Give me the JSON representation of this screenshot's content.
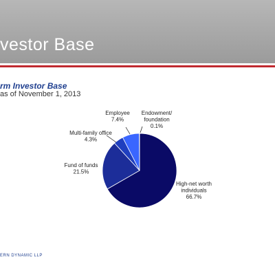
{
  "header": {
    "title": "vestor Base"
  },
  "section": {
    "subtitle": "rm Investor Base",
    "as_of": "as of November 1, 2013"
  },
  "chart_data": {
    "type": "pie",
    "title": "",
    "slices": [
      {
        "label": [
          "High-net worth",
          "individuals"
        ],
        "percent_label": "66.7%",
        "value": 66.7,
        "color": "#0a0a66"
      },
      {
        "label": [
          "Fund of funds"
        ],
        "percent_label": "21.5%",
        "value": 21.5,
        "color": "#1c2d99"
      },
      {
        "label": [
          "Multi-family office"
        ],
        "percent_label": "4.3%",
        "value": 4.3,
        "color": "#1f3fbf"
      },
      {
        "label": [
          "Employee"
        ],
        "percent_label": "7.4%",
        "value": 7.4,
        "color": "#3a66ff"
      },
      {
        "label": [
          "Endowment/",
          "foundation"
        ],
        "percent_label": "0.1%",
        "value": 0.1,
        "color": "#6f8fff"
      }
    ]
  },
  "footer": {
    "text": "ERN DYNAMIC LLP"
  }
}
